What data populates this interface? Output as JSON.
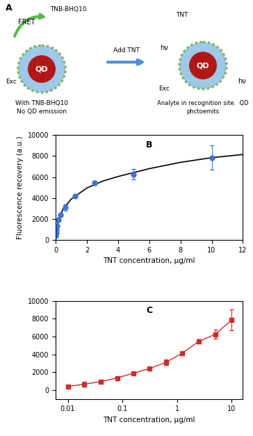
{
  "diagram": {
    "panel_label": "A",
    "left": {
      "fret": "FRET",
      "quencher": "TNB-BHQ10",
      "excitation": "Exc",
      "qd": "QD",
      "caption": [
        "With TNB-BHQ10",
        "No QD emission"
      ]
    },
    "arrow": {
      "label": "Add TNT"
    },
    "right": {
      "analyte": "TNT",
      "emission": [
        "hν",
        "hν"
      ],
      "excitation": "Exc",
      "qd": "QD",
      "caption": [
        "Analyte in recognition site.  QD",
        "phctoemits"
      ]
    }
  },
  "chart_data": [
    {
      "panel_label": "B",
      "type": "scatter",
      "xlabel": "TNT concentration, µg/ml",
      "ylabel": "Fluorescence recovery (a.u.)",
      "xlim": [
        0,
        12
      ],
      "xticks": [
        0,
        2,
        4,
        6,
        8,
        10,
        12
      ],
      "ylim": [
        0,
        10000
      ],
      "yticks": [
        0,
        2000,
        4000,
        6000,
        8000,
        10000
      ],
      "series": [
        {
          "type": "scatter",
          "color": "#3f73d6",
          "marker": "circle",
          "x": [
            0.01,
            0.02,
            0.04,
            0.08,
            0.16,
            0.31,
            0.625,
            1.25,
            2.5,
            5,
            10
          ],
          "values": [
            400,
            650,
            950,
            1350,
            1900,
            2400,
            3100,
            4150,
            5450,
            6250,
            7850
          ],
          "errors": [
            50,
            250,
            120,
            100,
            100,
            100,
            300,
            100,
            200,
            500,
            1150
          ]
        },
        {
          "type": "line",
          "color": "#000000",
          "line_style": "solid",
          "x": [
            0,
            0.05,
            0.1,
            0.25,
            0.5,
            1,
            2,
            3,
            4,
            6,
            8,
            10,
            12
          ],
          "values": [
            0,
            900,
            1400,
            2200,
            3000,
            3900,
            4950,
            5600,
            6050,
            6800,
            7400,
            7850,
            8150
          ]
        }
      ]
    },
    {
      "panel_label": "C",
      "type": "line",
      "log": "x",
      "xlabel": "TNT concentration, µg/ml",
      "xlim": [
        0.006,
        16
      ],
      "xticks": [
        0.01,
        0.1,
        1,
        10
      ],
      "ylim": [
        -1000,
        10000
      ],
      "yticks": [
        0,
        2000,
        4000,
        6000,
        8000,
        10000
      ],
      "series": [
        {
          "type": "line",
          "color": "#d42a2a",
          "marker": "square",
          "line_style": "solid",
          "x": [
            0.01,
            0.02,
            0.04,
            0.08,
            0.16,
            0.31,
            0.625,
            1.25,
            2.5,
            5,
            10
          ],
          "values": [
            400,
            650,
            950,
            1350,
            1900,
            2400,
            3100,
            4150,
            5450,
            6250,
            7850
          ],
          "errors": [
            50,
            250,
            120,
            100,
            100,
            100,
            300,
            100,
            200,
            500,
            1150
          ]
        }
      ]
    }
  ]
}
